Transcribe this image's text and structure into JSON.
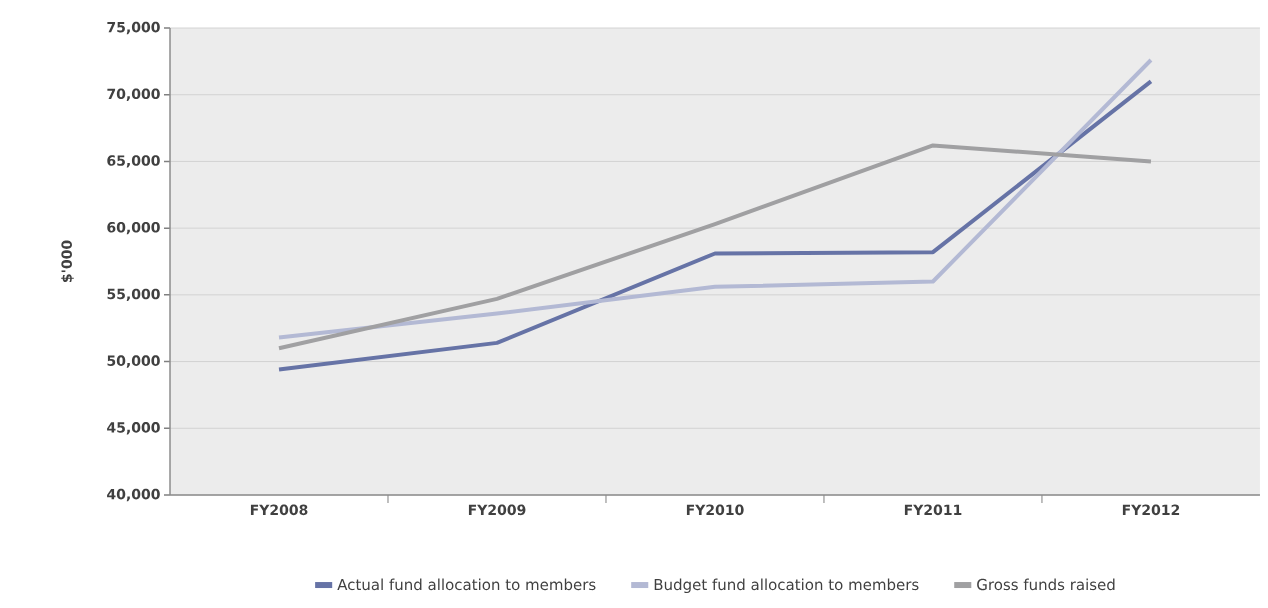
{
  "chart_data": {
    "type": "line",
    "ylabel": "$'000",
    "categories": [
      "FY2008",
      "FY2009",
      "FY2010",
      "FY2011",
      "FY2012"
    ],
    "series": [
      {
        "name": "Actual fund allocation to members",
        "color": "#6673a6",
        "values": [
          49400,
          51400,
          58100,
          58200,
          71000
        ]
      },
      {
        "name": "Budget fund allocation to members",
        "color": "#b3b9d4",
        "values": [
          51800,
          53600,
          55600,
          56000,
          72600
        ]
      },
      {
        "name": "Gross funds raised",
        "color": "#a0a0a2",
        "values": [
          51000,
          54700,
          60300,
          66200,
          65000
        ]
      }
    ],
    "ylim": [
      40000,
      75000
    ],
    "yticks": [
      {
        "value": 40000,
        "label": "40,000"
      },
      {
        "value": 45000,
        "label": "45,000"
      },
      {
        "value": 50000,
        "label": "50,000"
      },
      {
        "value": 55000,
        "label": "55,000"
      },
      {
        "value": 60000,
        "label": "60,000"
      },
      {
        "value": 65000,
        "label": "65,000"
      },
      {
        "value": 70000,
        "label": "70,000"
      },
      {
        "value": 75000,
        "label": "75,000"
      }
    ],
    "grid": "y",
    "legend": "bottom",
    "marker": "none",
    "line_style": "solid"
  }
}
